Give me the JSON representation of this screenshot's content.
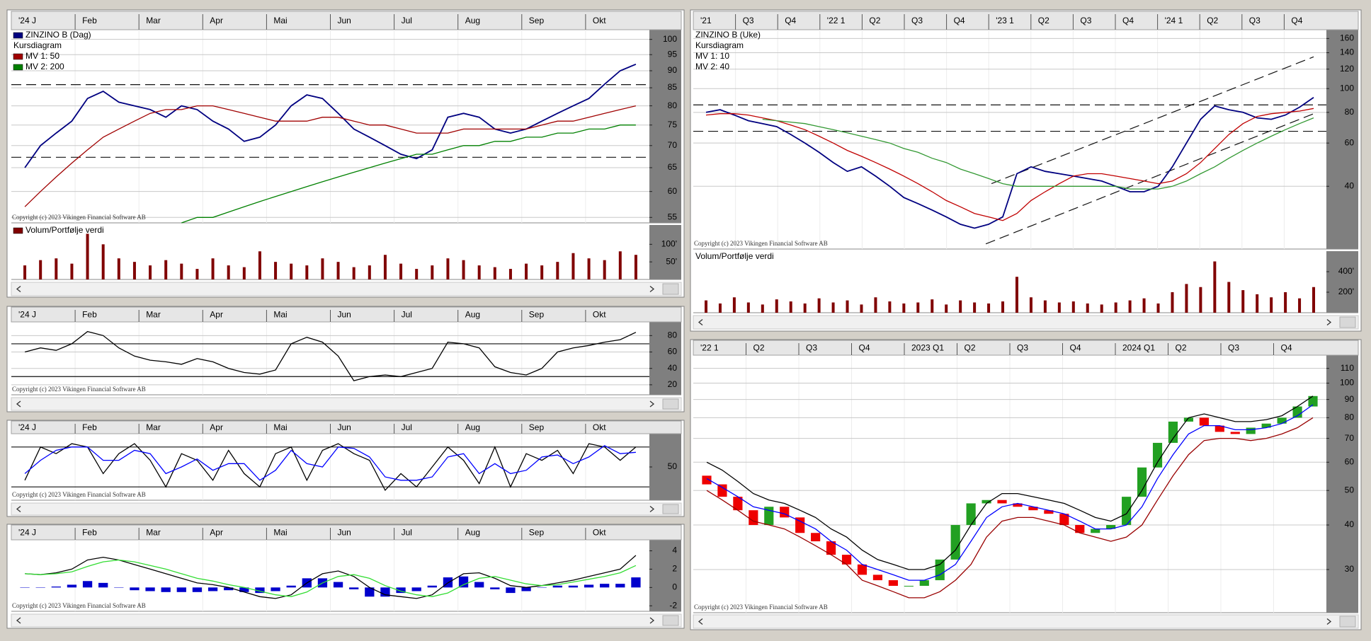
{
  "chart_data": [
    {
      "type": "line",
      "subtitle": "Kursdiagram",
      "log": true,
      "grid": true,
      "legend_swatches": true,
      "hline_style": "dashed",
      "x_labels": [
        "'24 J",
        "Feb",
        "Mar",
        "Apr",
        "Mai",
        "Jun",
        "Jul",
        "Aug",
        "Sep",
        "Okt"
      ],
      "ylim": [
        54,
        103.3
      ],
      "yticks": [
        55,
        60,
        65,
        70,
        75,
        80,
        85,
        90,
        95,
        100
      ],
      "hlines": [
        85.9,
        67.3
      ],
      "copyright": "Copyright (c) 2023 Vikingen Financial Software AB",
      "series": [
        {
          "name": "ZINZINO B (Dag)",
          "color": "#000080",
          "values": [
            65,
            70,
            73,
            76,
            82,
            84,
            81,
            80,
            79,
            77,
            80,
            79,
            76,
            74,
            71,
            72,
            75,
            80,
            83,
            82,
            78,
            74,
            72,
            70,
            68,
            67,
            69,
            77,
            78,
            77,
            74,
            73,
            74,
            76,
            78,
            80,
            82,
            86,
            90,
            92
          ]
        },
        {
          "name": "MV 1: 50",
          "color": "#a00000",
          "values": [
            57,
            60,
            63,
            66,
            69,
            72,
            74,
            76,
            78,
            79,
            79,
            80,
            80,
            79,
            78,
            77,
            76,
            76,
            76,
            77,
            77,
            76,
            75,
            75,
            74,
            73,
            73,
            73,
            74,
            74,
            74,
            74,
            74,
            75,
            76,
            76,
            77,
            78,
            79,
            80
          ]
        },
        {
          "name": "MV 2: 200",
          "color": "#008000",
          "values": [
            null,
            null,
            null,
            null,
            null,
            null,
            null,
            null,
            null,
            null,
            54,
            55,
            55,
            56,
            57,
            58,
            59,
            60,
            61,
            62,
            63,
            64,
            65,
            66,
            67,
            68,
            68,
            69,
            70,
            70,
            71,
            71,
            72,
            72,
            73,
            73,
            74,
            74,
            75,
            75
          ]
        }
      ]
    },
    {
      "type": "bar",
      "title": "Volum/Portfølje verdi",
      "color": "#800000",
      "legend_swatches": true,
      "ylim": [
        0,
        155
      ],
      "yticks": [
        {
          "value": 100,
          "label": "100'"
        },
        {
          "value": 50,
          "label": "50'"
        }
      ],
      "values": [
        40,
        55,
        60,
        45,
        130,
        100,
        60,
        50,
        40,
        55,
        45,
        30,
        60,
        40,
        35,
        80,
        50,
        45,
        40,
        60,
        50,
        35,
        40,
        70,
        45,
        30,
        40,
        60,
        55,
        40,
        35,
        30,
        45,
        40,
        50,
        75,
        60,
        55,
        80,
        70
      ]
    },
    {
      "type": "line",
      "grid": true,
      "hline_style": "solid",
      "x_labels": [
        "'24 J",
        "Feb",
        "Mar",
        "Apr",
        "Mai",
        "Jun",
        "Jul",
        "Aug",
        "Sep",
        "Okt"
      ],
      "ylim": [
        7.8,
        96.7
      ],
      "yticks": [
        20,
        40,
        60,
        80
      ],
      "hlines": [
        70,
        30
      ],
      "copyright": "Copyright (c) 2023 Vikingen Financial Software AB",
      "series": [
        {
          "color": "#000000",
          "values": [
            60,
            65,
            62,
            70,
            85,
            80,
            65,
            55,
            50,
            48,
            45,
            52,
            48,
            40,
            35,
            33,
            38,
            70,
            78,
            72,
            55,
            25,
            30,
            32,
            30,
            35,
            40,
            72,
            70,
            65,
            42,
            35,
            32,
            40,
            60,
            65,
            68,
            72,
            75,
            84
          ]
        }
      ]
    },
    {
      "type": "line",
      "grid": false,
      "hline_style": "solid",
      "x_labels": [
        "'24 J",
        "Feb",
        "Mar",
        "Apr",
        "Mai",
        "Jun",
        "Jul",
        "Aug",
        "Sep",
        "Okt"
      ],
      "ylim": [
        0,
        100
      ],
      "yticks": [
        50
      ],
      "hlines": [
        80,
        20
      ],
      "copyright": "Copyright (c) 2023 Vikingen Financial Software AB",
      "series": [
        {
          "color": "#000000",
          "values": [
            30,
            80,
            70,
            85,
            80,
            40,
            70,
            85,
            60,
            20,
            70,
            60,
            30,
            75,
            40,
            20,
            70,
            80,
            30,
            75,
            85,
            70,
            60,
            15,
            40,
            20,
            50,
            80,
            60,
            25,
            80,
            20,
            70,
            60,
            75,
            40,
            85,
            80,
            60,
            80
          ]
        },
        {
          "color": "#0000ff",
          "values": [
            40,
            60,
            75,
            80,
            80,
            60,
            60,
            75,
            70,
            40,
            50,
            62,
            45,
            55,
            55,
            30,
            45,
            75,
            55,
            50,
            80,
            78,
            65,
            35,
            30,
            30,
            35,
            65,
            70,
            40,
            55,
            40,
            45,
            65,
            68,
            55,
            65,
            82,
            70,
            72
          ]
        }
      ]
    },
    {
      "type": "line",
      "grid": false,
      "x_labels": [
        "'24 J",
        "Feb",
        "Mar",
        "Apr",
        "Mai",
        "Jun",
        "Jul",
        "Aug",
        "Sep",
        "Okt"
      ],
      "ylim": [
        -2.6,
        5.2
      ],
      "yticks": [
        -2,
        0,
        2,
        4
      ],
      "copyright": "Copyright (c) 2023 Vikingen Financial Software AB",
      "series": [
        {
          "kind": "bar",
          "color": "#0000cc",
          "values": [
            0,
            0,
            0.1,
            0.3,
            0.7,
            0.5,
            0,
            -0.3,
            -0.4,
            -0.5,
            -0.5,
            -0.5,
            -0.4,
            -0.3,
            -0.5,
            -0.6,
            -0.4,
            0.2,
            1.0,
            1.0,
            0.6,
            -0.2,
            -1.0,
            -1.0,
            -0.6,
            -0.4,
            0.2,
            1.1,
            1.2,
            0.6,
            -0.2,
            -0.6,
            -0.4,
            0,
            0.2,
            0.2,
            0.3,
            0.4,
            0.4,
            1.1
          ]
        },
        {
          "color": "#000000",
          "values": [
            1.5,
            1.4,
            1.6,
            2,
            3,
            3.3,
            3,
            2.5,
            2,
            1.5,
            1,
            0.5,
            0.3,
            0,
            -0.5,
            -1,
            -1.2,
            -0.8,
            0.5,
            1.5,
            1.8,
            1.2,
            0,
            -0.8,
            -1,
            -1.2,
            -0.8,
            0.5,
            1.5,
            1.6,
            1,
            0.2,
            0,
            0.2,
            0.5,
            0.8,
            1.2,
            1.6,
            2,
            3.5
          ]
        },
        {
          "color": "#33dd33",
          "values": [
            1.5,
            1.4,
            1.5,
            1.7,
            2.3,
            2.8,
            3,
            2.8,
            2.4,
            2,
            1.5,
            1,
            0.7,
            0.3,
            0,
            -0.4,
            -0.8,
            -1,
            -0.5,
            0.5,
            1.2,
            1.4,
            1,
            0.2,
            -0.4,
            -0.8,
            -1,
            -0.6,
            0.3,
            1,
            1.2,
            0.8,
            0.4,
            0.2,
            0.3,
            0.6,
            0.9,
            1.2,
            1.6,
            2.4
          ]
        }
      ]
    },
    {
      "type": "line",
      "subtitle": "Kursdiagram",
      "log": true,
      "grid": true,
      "legend_swatches": false,
      "hline_style": "dashed",
      "x_labels": [
        "'21",
        "Q3",
        "Q4",
        "'22 1",
        "Q2",
        "Q3",
        "Q4",
        "'23 1",
        "Q2",
        "Q3",
        "Q4",
        "'24 1",
        "Q2",
        "Q3",
        "Q4"
      ],
      "ylim": [
        22.2,
        173.7
      ],
      "yticks": [
        40,
        60,
        80,
        100,
        120,
        140,
        160
      ],
      "hlines": [
        85.8,
        67
      ],
      "trendlines": [
        {
          "x": [
            19.8,
            43
          ],
          "values": [
            23.3,
            79
          ]
        },
        {
          "x": [
            20.2,
            43
          ],
          "values": [
            41,
            134.7
          ]
        }
      ],
      "copyright": "Copyright (c) 2023 Vikingen Financial Software AB",
      "series": [
        {
          "name": "ZINZINO B (Uke)",
          "color": "#000080",
          "values": [
            80,
            82,
            78,
            74,
            72,
            70,
            65,
            60,
            55,
            50,
            46,
            48,
            44,
            40,
            36,
            34,
            32,
            30,
            28,
            27,
            28,
            30,
            45,
            48,
            46,
            45,
            44,
            43,
            42,
            40,
            38,
            38,
            40,
            48,
            60,
            75,
            85,
            82,
            80,
            76,
            75,
            78,
            84,
            92
          ]
        },
        {
          "name": "MV 1: 10",
          "color": "#c00000",
          "values": [
            78,
            79,
            79,
            78,
            76,
            74,
            71,
            68,
            64,
            60,
            56,
            53,
            50,
            47,
            44,
            41,
            38,
            35,
            33,
            31,
            30,
            29,
            31,
            35,
            38,
            41,
            44,
            45,
            45,
            44,
            43,
            42,
            41,
            42,
            45,
            50,
            57,
            65,
            72,
            77,
            79,
            80,
            81,
            83
          ]
        },
        {
          "name": "MV 2: 40",
          "color": "#339933",
          "values": [
            null,
            null,
            null,
            null,
            75,
            74,
            73,
            72,
            70,
            68,
            66,
            64,
            62,
            60,
            57,
            55,
            52,
            50,
            47,
            45,
            43,
            41,
            40,
            40,
            40,
            40,
            40,
            40,
            40,
            40,
            39,
            39,
            39,
            40,
            42,
            45,
            48,
            52,
            56,
            60,
            64,
            68,
            72,
            76
          ]
        }
      ]
    },
    {
      "type": "bar",
      "title": "Volum/Portfølje verdi",
      "color": "#800000",
      "legend_swatches": false,
      "ylim": [
        0,
        600
      ],
      "yticks": [
        {
          "value": 400,
          "label": "400'"
        },
        {
          "value": 200,
          "label": "200'"
        }
      ],
      "values": [
        120,
        90,
        150,
        100,
        80,
        130,
        110,
        90,
        140,
        100,
        120,
        80,
        150,
        110,
        90,
        100,
        130,
        80,
        120,
        100,
        90,
        110,
        350,
        150,
        120,
        100,
        110,
        90,
        80,
        100,
        120,
        140,
        90,
        200,
        280,
        250,
        500,
        300,
        220,
        180,
        150,
        200,
        140,
        250
      ]
    },
    {
      "type": "candlestick",
      "log": true,
      "grid": true,
      "x_labels": [
        "'22 1",
        "Q2",
        "Q3",
        "Q4",
        "2023 Q1",
        "Q2",
        "Q3",
        "Q4",
        "2024 Q1",
        "Q2",
        "Q3",
        "Q4"
      ],
      "ylim": [
        22.7,
        119.8
      ],
      "yticks": [
        30,
        40,
        50,
        60,
        70,
        80,
        90,
        100,
        110
      ],
      "copyright": "Copyright (c) 2023 Vikingen Financial Software AB",
      "up_color": "#22a022",
      "down_color": "#ee0000",
      "open": [
        55,
        52,
        48,
        44,
        40,
        45,
        42,
        38,
        36,
        33,
        31,
        29,
        28,
        27,
        27,
        28,
        32,
        40,
        46,
        47,
        46,
        45,
        44,
        43,
        40,
        38,
        39,
        40,
        48,
        58,
        68,
        78,
        80,
        76,
        73,
        72,
        75,
        77,
        80,
        86
      ],
      "close": [
        52,
        48,
        44,
        40,
        45,
        42,
        38,
        36,
        33,
        31,
        29,
        28,
        27,
        27,
        28,
        32,
        40,
        46,
        47,
        46,
        45,
        44,
        43,
        40,
        38,
        39,
        40,
        48,
        58,
        68,
        78,
        80,
        76,
        73,
        72,
        75,
        77,
        80,
        86,
        92
      ],
      "series": [
        {
          "color": "#000000",
          "values": [
            60,
            57,
            53,
            49,
            47,
            46,
            44,
            42,
            39,
            37,
            34,
            32,
            31,
            30,
            30,
            31,
            34,
            40,
            46,
            49,
            49,
            48,
            47,
            46,
            44,
            42,
            41,
            43,
            50,
            60,
            70,
            80,
            82,
            80,
            78,
            78,
            79,
            81,
            86,
            92
          ]
        },
        {
          "color": "#0000ff",
          "values": [
            54,
            51,
            48,
            45,
            44,
            43,
            41,
            39,
            36,
            34,
            31,
            30,
            29,
            28,
            28,
            29,
            31,
            36,
            42,
            45,
            46,
            45,
            44,
            43,
            41,
            39,
            39,
            40,
            45,
            54,
            63,
            72,
            76,
            76,
            74,
            74,
            75,
            77,
            81,
            87
          ]
        },
        {
          "color": "#990000",
          "values": [
            50,
            47,
            44,
            41,
            40,
            39,
            37,
            35,
            33,
            31,
            28,
            27,
            26,
            25,
            25,
            26,
            28,
            31,
            37,
            41,
            42,
            42,
            41,
            40,
            38,
            37,
            36,
            37,
            40,
            47,
            55,
            63,
            69,
            70,
            70,
            69,
            70,
            72,
            75,
            80
          ]
        }
      ]
    }
  ]
}
